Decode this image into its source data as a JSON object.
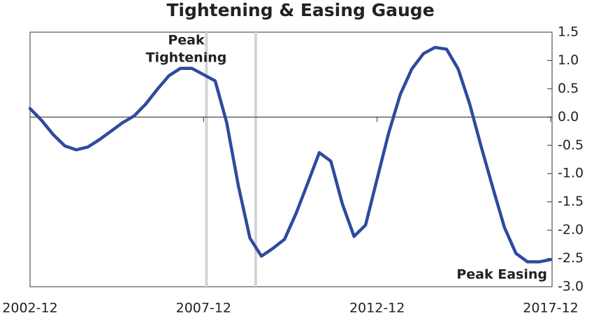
{
  "chart_data": {
    "type": "line",
    "title": "Tightening & Easing Gauge",
    "x": [
      "2002-12",
      "2003-04",
      "2003-08",
      "2003-12",
      "2004-04",
      "2004-08",
      "2004-12",
      "2005-04",
      "2005-08",
      "2005-12",
      "2006-04",
      "2006-08",
      "2006-12",
      "2007-04",
      "2007-08",
      "2007-12",
      "2008-04",
      "2008-08",
      "2008-12",
      "2009-04",
      "2009-08",
      "2009-12",
      "2010-04",
      "2010-08",
      "2010-12",
      "2011-04",
      "2011-08",
      "2011-12",
      "2012-04",
      "2012-08",
      "2012-12",
      "2013-04",
      "2013-08",
      "2013-12",
      "2014-04",
      "2014-08",
      "2014-12",
      "2015-04",
      "2015-08",
      "2015-12",
      "2016-04",
      "2016-08",
      "2016-12",
      "2017-04",
      "2017-08",
      "2017-12"
    ],
    "series": [
      {
        "color": "#2f4a9e",
        "values": [
          0.15,
          -0.06,
          -0.31,
          -0.51,
          -0.58,
          -0.53,
          -0.4,
          -0.25,
          -0.1,
          0.02,
          0.23,
          0.49,
          0.73,
          0.86,
          0.86,
          0.75,
          0.64,
          -0.1,
          -1.21,
          -2.14,
          -2.46,
          -2.32,
          -2.16,
          -1.7,
          -1.17,
          -0.63,
          -0.78,
          -1.54,
          -2.11,
          -1.91,
          -1.09,
          -0.28,
          0.4,
          0.85,
          1.12,
          1.23,
          1.2,
          0.85,
          0.23,
          -0.53,
          -1.25,
          -1.95,
          -2.41,
          -2.56,
          -2.56,
          -2.52
        ]
      }
    ],
    "xlim": [
      "2002-12",
      "2017-12"
    ],
    "xticks": [
      "2002-12",
      "2007-12",
      "2012-12",
      "2017-12"
    ],
    "ylim": [
      -3.0,
      1.5
    ],
    "yticks": [
      1.5,
      {
        "value": 1.0,
        "label": "1.0"
      },
      0.5,
      {
        "value": 0.0,
        "label": "0.0"
      },
      -0.5,
      {
        "value": -1.0,
        "label": "-1.0"
      },
      -1.5,
      {
        "value": -2.0,
        "label": "-2.0"
      },
      -2.5,
      {
        "value": -3.0,
        "label": "-3.0"
      }
    ],
    "zero_line": true,
    "marker_lines": [
      "2008-01",
      "2009-06"
    ],
    "annotations": [
      {
        "lines": [
          "Peak",
          "Tightening"
        ],
        "x": "2008-01"
      },
      {
        "lines": [
          "Peak Easing"
        ],
        "x": "2017-12"
      }
    ]
  }
}
